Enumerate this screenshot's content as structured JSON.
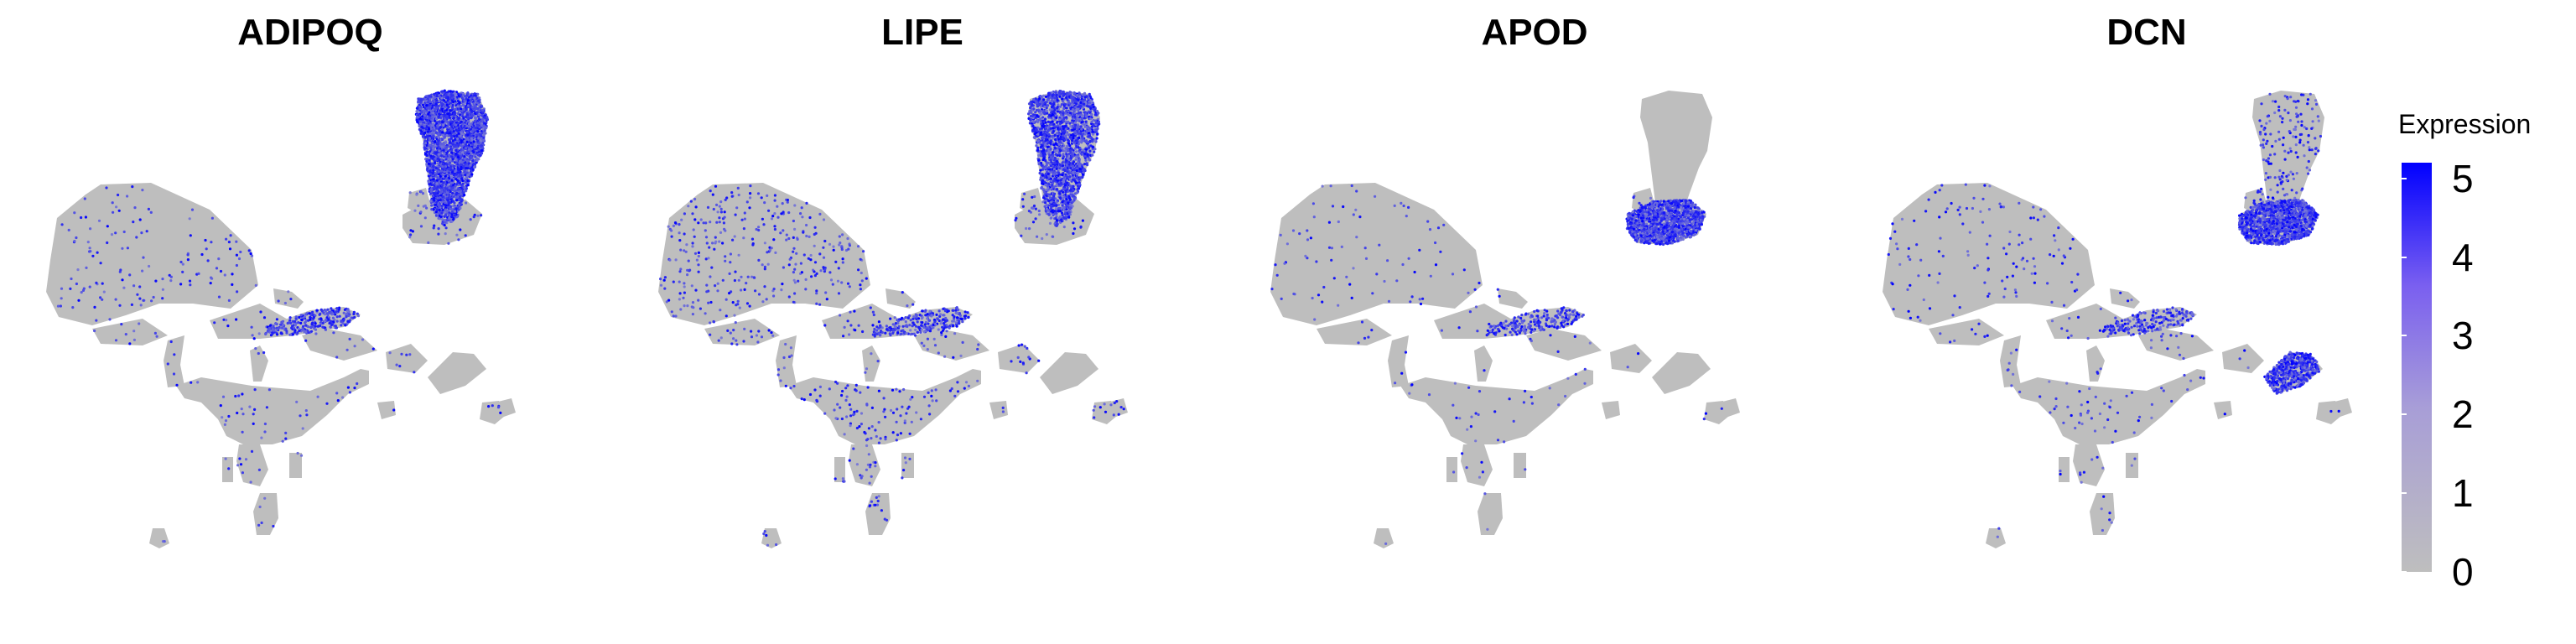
{
  "chart_data": [
    {
      "type": "scatter",
      "title": "ADIPOQ",
      "xlabel": "",
      "ylabel": "",
      "grid": false,
      "highlight": {
        "fat": 0.85,
        "adipo_low": 0.06,
        "stromal": 0.02,
        "band": 0.35,
        "mid_right": 0.0,
        "background": 0.012
      }
    },
    {
      "type": "scatter",
      "title": "LIPE",
      "xlabel": "",
      "ylabel": "",
      "grid": false,
      "highlight": {
        "fat": 0.55,
        "adipo_low": 0.05,
        "stromal": 0.02,
        "band": 0.3,
        "mid_right": 0.0,
        "background": 0.03
      }
    },
    {
      "type": "scatter",
      "title": "APOD",
      "xlabel": "",
      "ylabel": "",
      "grid": false,
      "highlight": {
        "fat": 0.0,
        "adipo_low": 0.03,
        "stromal": 0.9,
        "band": 0.25,
        "mid_right": 0.0,
        "background": 0.008
      }
    },
    {
      "type": "scatter",
      "title": "DCN",
      "xlabel": "",
      "ylabel": "",
      "grid": false,
      "highlight": {
        "fat": 0.05,
        "adipo_low": 0.05,
        "stromal": 0.95,
        "band": 0.25,
        "mid_right": 0.7,
        "background": 0.012
      }
    }
  ],
  "legend": {
    "title": "Expression",
    "ticks": [
      0,
      1,
      2,
      3,
      4,
      5
    ],
    "range": [
      0,
      5.2
    ],
    "colors": {
      "low": "#bebebe",
      "high": "#0000ff"
    },
    "placement": "right"
  }
}
